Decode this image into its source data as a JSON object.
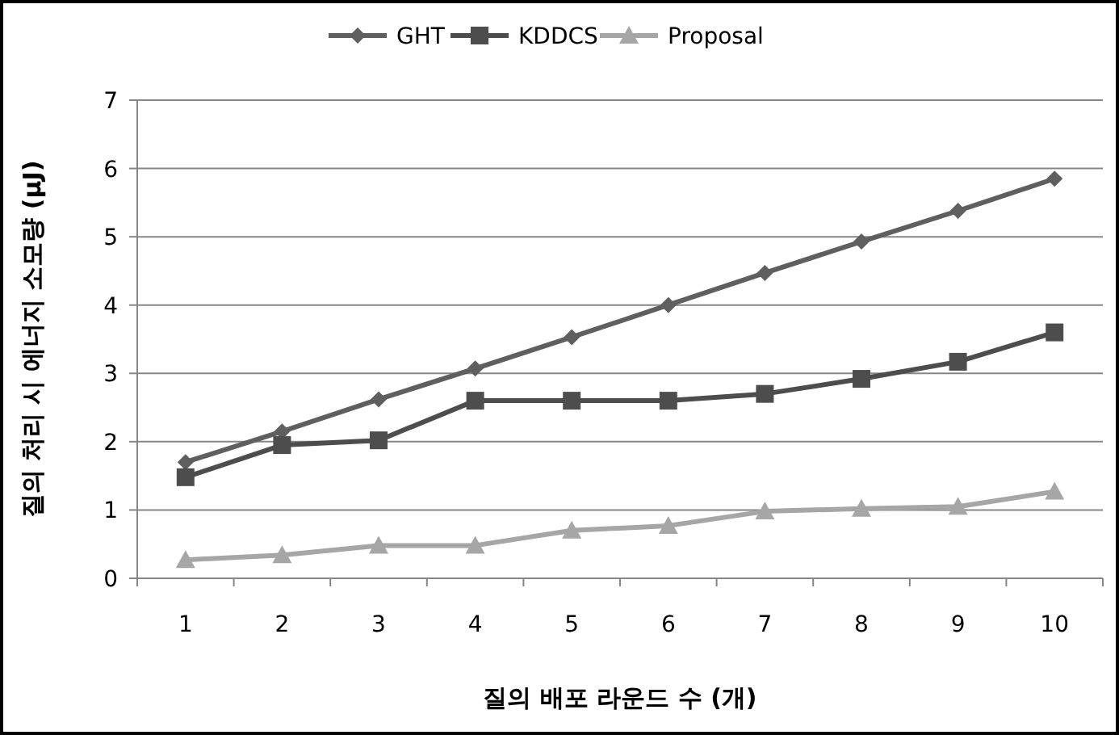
{
  "chart_data": {
    "type": "line",
    "xlabel": "질의 배포 라운드 수 (개)",
    "ylabel": "질의 처리 시 에너지 소모량 (μJ)",
    "categories": [
      "1",
      "2",
      "3",
      "4",
      "5",
      "6",
      "7",
      "8",
      "9",
      "10"
    ],
    "series": [
      {
        "name": "GHT",
        "color": "#5f5f5f",
        "marker": "diamond",
        "values": [
          1.7,
          2.15,
          2.62,
          3.07,
          3.53,
          4.0,
          4.47,
          4.93,
          5.38,
          5.85
        ]
      },
      {
        "name": "KDDCS",
        "color": "#4d4d4d",
        "marker": "square",
        "values": [
          1.48,
          1.95,
          2.02,
          2.6,
          2.6,
          2.6,
          2.7,
          2.92,
          3.17,
          3.6
        ]
      },
      {
        "name": "Proposal",
        "color": "#a6a6a6",
        "marker": "triangle",
        "values": [
          0.27,
          0.34,
          0.48,
          0.48,
          0.7,
          0.77,
          0.98,
          1.02,
          1.05,
          1.27
        ]
      }
    ],
    "ylim": [
      0,
      7
    ],
    "yticks": [
      0,
      1,
      2,
      3,
      4,
      5,
      6,
      7
    ],
    "grid": "y",
    "legend": "top"
  }
}
